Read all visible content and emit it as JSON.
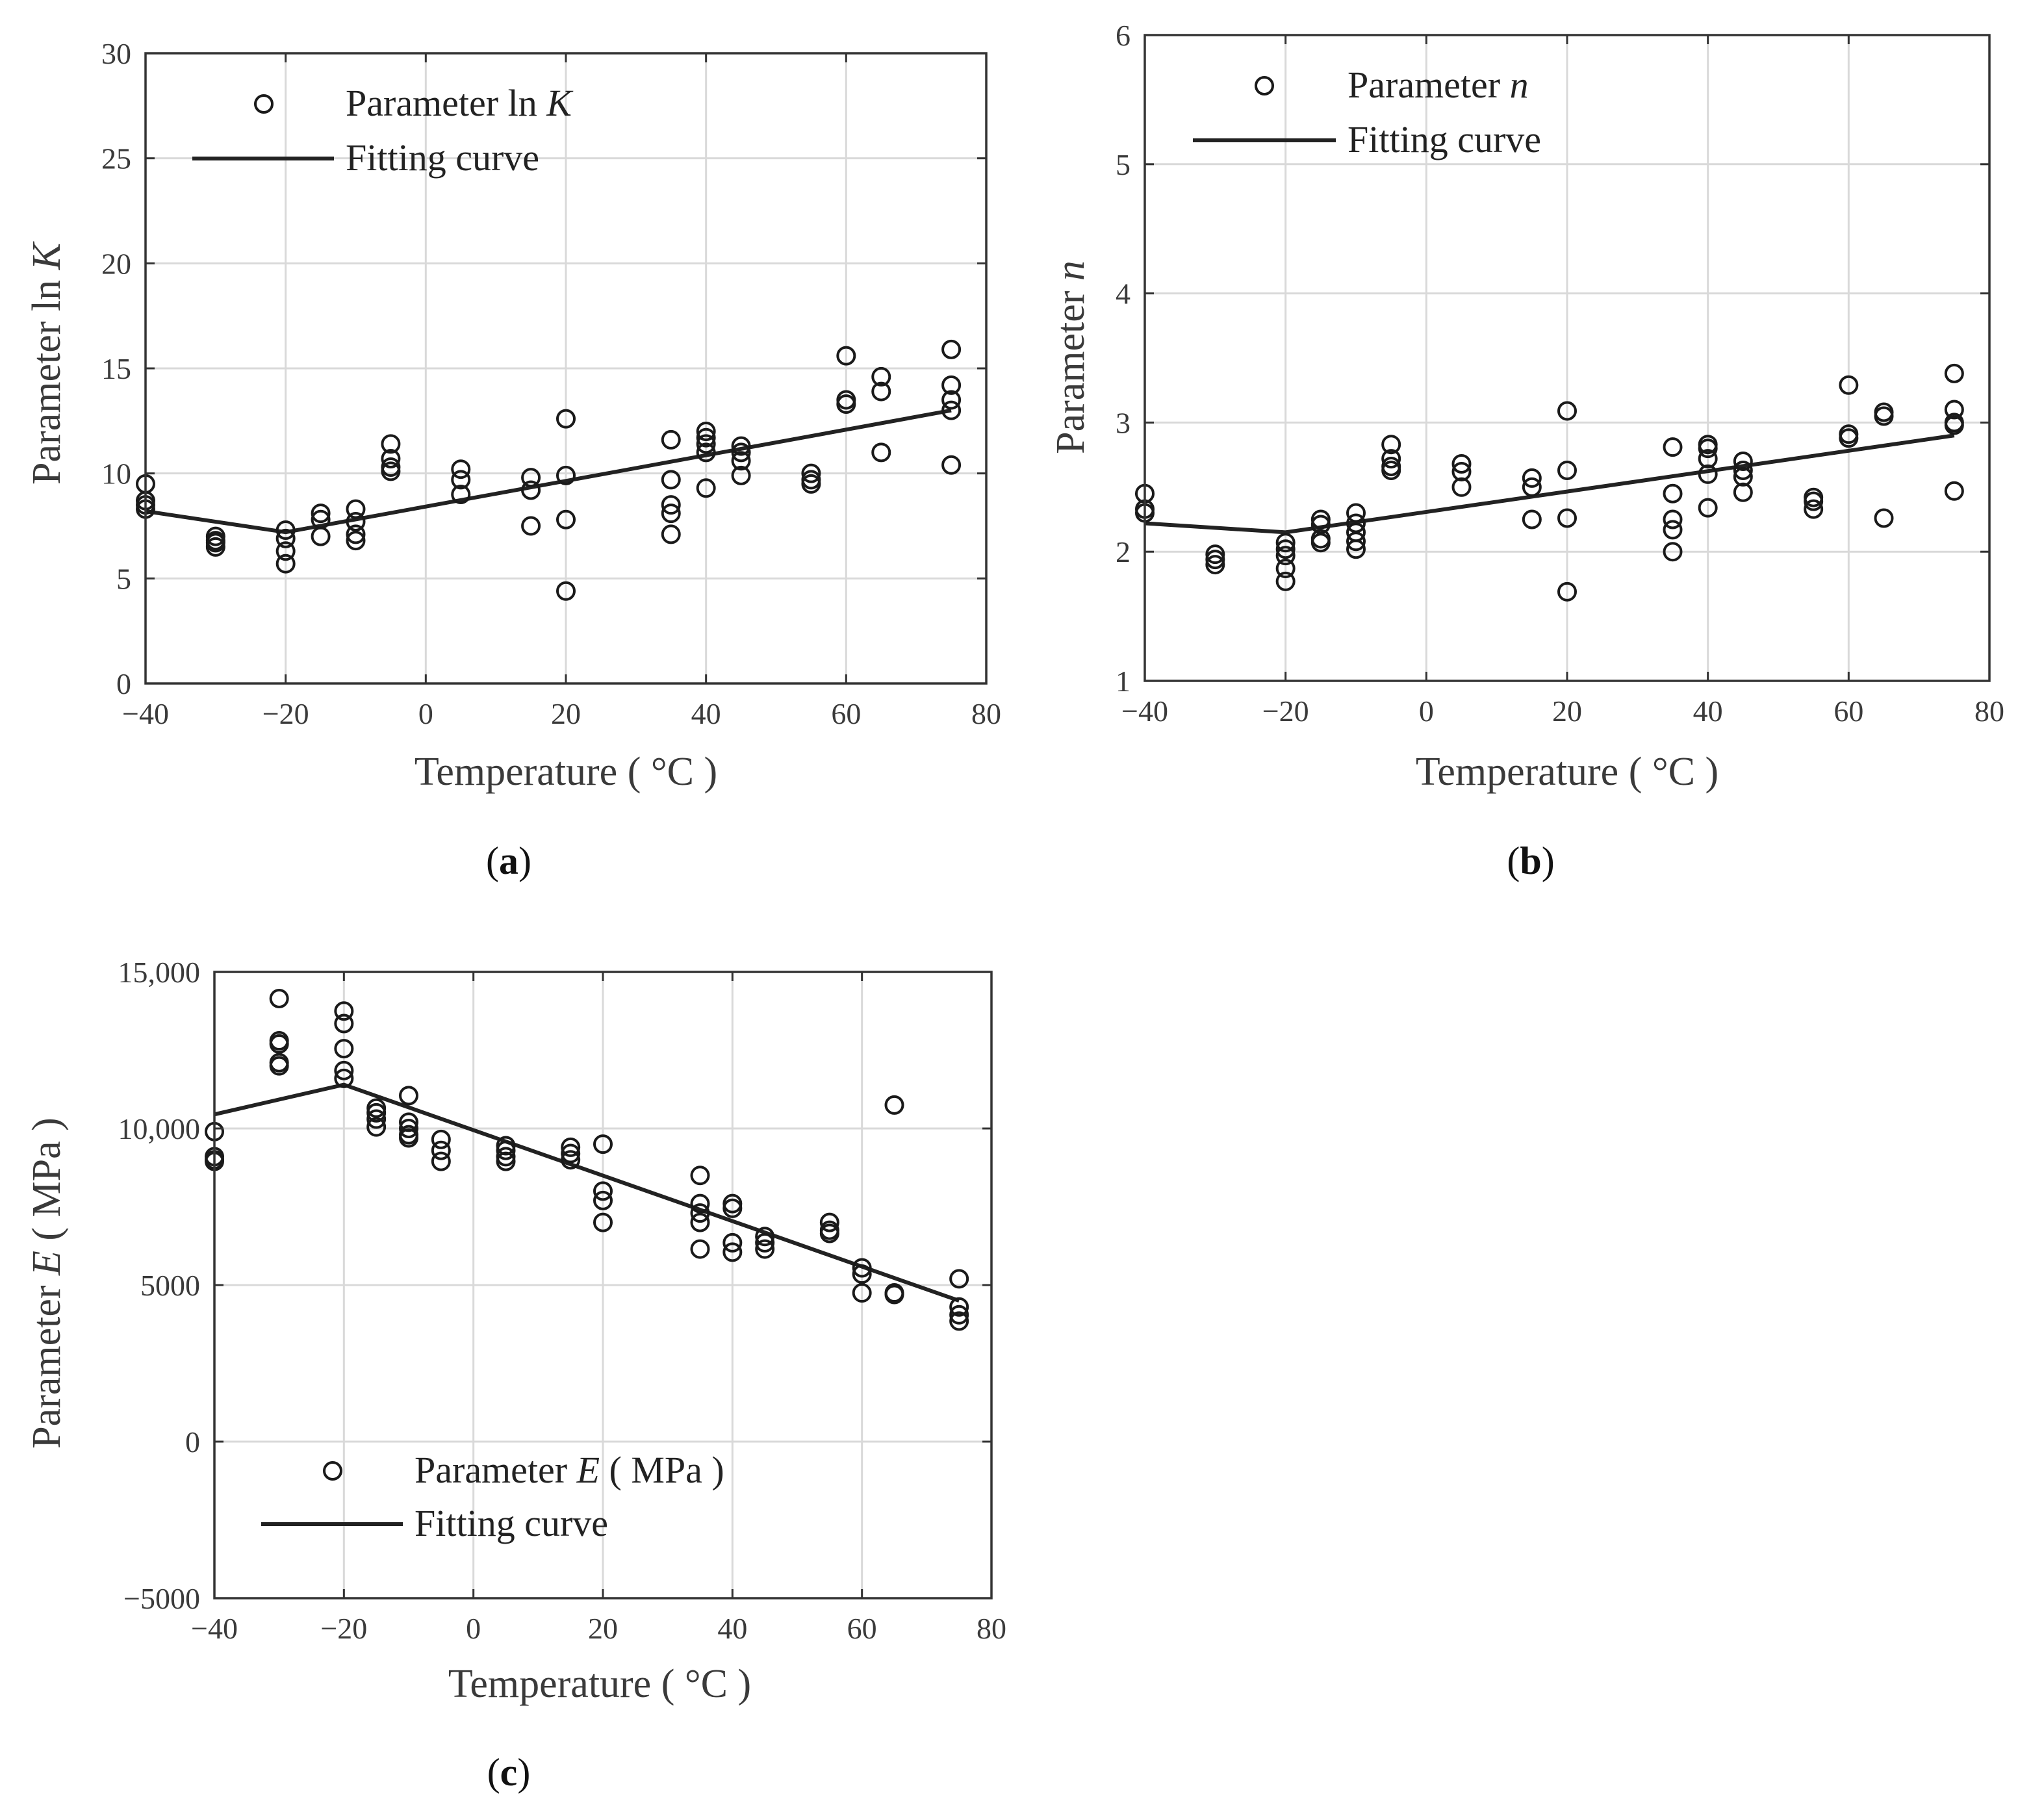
{
  "colors": {
    "marker": "#1a1a1a",
    "line": "#222222",
    "grid": "#d9d9d9",
    "axis": "#333333",
    "background": "#ffffff"
  },
  "chart_data": [
    {
      "id": "a",
      "panel_label": "a",
      "type": "scatter",
      "title": "",
      "xlabel": "Temperature ( °C )",
      "ylabel_prefix": "Parameter ln ",
      "ylabel_italic": "K",
      "xlim": [
        -40,
        80
      ],
      "ylim": [
        0,
        30
      ],
      "xticks": [
        -40,
        -20,
        0,
        20,
        40,
        60,
        80
      ],
      "yticks": [
        0,
        5,
        10,
        15,
        20,
        25,
        30
      ],
      "x_tick_labels": [
        "−40",
        "−20",
        "0",
        "20",
        "40",
        "60",
        "80"
      ],
      "y_tick_labels": [
        "0",
        "5",
        "10",
        "15",
        "20",
        "25",
        "30"
      ],
      "grid": true,
      "legend_position": "top-left",
      "series": [
        {
          "name": "Parameter ln K",
          "legend_prefix": "Parameter ln ",
          "legend_italic": "K",
          "legend_suffix": "",
          "kind": "scatter",
          "points": [
            [
              -40,
              9.5
            ],
            [
              -40,
              8.7
            ],
            [
              -40,
              8.3
            ],
            [
              -40,
              8.5
            ],
            [
              -30,
              7.0
            ],
            [
              -30,
              6.7
            ],
            [
              -30,
              6.5
            ],
            [
              -30,
              6.8
            ],
            [
              -20,
              7.3
            ],
            [
              -20,
              6.9
            ],
            [
              -20,
              6.3
            ],
            [
              -20,
              5.7
            ],
            [
              -15,
              8.1
            ],
            [
              -15,
              7.8
            ],
            [
              -15,
              7.0
            ],
            [
              -10,
              8.3
            ],
            [
              -10,
              7.7
            ],
            [
              -10,
              7.1
            ],
            [
              -10,
              6.8
            ],
            [
              -5,
              11.4
            ],
            [
              -5,
              10.7
            ],
            [
              -5,
              10.3
            ],
            [
              -5,
              10.1
            ],
            [
              5,
              10.2
            ],
            [
              5,
              9.7
            ],
            [
              5,
              9.0
            ],
            [
              15,
              9.8
            ],
            [
              15,
              9.2
            ],
            [
              15,
              7.5
            ],
            [
              20,
              12.6
            ],
            [
              20,
              9.9
            ],
            [
              20,
              7.8
            ],
            [
              20,
              4.4
            ],
            [
              35,
              11.6
            ],
            [
              35,
              9.7
            ],
            [
              35,
              8.5
            ],
            [
              35,
              8.1
            ],
            [
              35,
              7.1
            ],
            [
              40,
              12.0
            ],
            [
              40,
              11.7
            ],
            [
              40,
              11.4
            ],
            [
              40,
              11.0
            ],
            [
              40,
              9.3
            ],
            [
              45,
              11.3
            ],
            [
              45,
              11.0
            ],
            [
              45,
              10.6
            ],
            [
              45,
              9.9
            ],
            [
              55,
              10.0
            ],
            [
              55,
              9.7
            ],
            [
              55,
              9.5
            ],
            [
              60,
              15.6
            ],
            [
              60,
              13.5
            ],
            [
              60,
              13.3
            ],
            [
              65,
              14.6
            ],
            [
              65,
              13.9
            ],
            [
              65,
              11.0
            ],
            [
              75,
              15.9
            ],
            [
              75,
              14.2
            ],
            [
              75,
              13.5
            ],
            [
              75,
              13.0
            ],
            [
              75,
              10.4
            ]
          ]
        },
        {
          "name": "Fitting curve",
          "kind": "line",
          "x": [
            -40,
            -20,
            75
          ],
          "y": [
            8.2,
            7.2,
            13.0
          ]
        }
      ]
    },
    {
      "id": "b",
      "panel_label": "b",
      "type": "scatter",
      "title": "",
      "xlabel": "Temperature ( °C )",
      "ylabel_prefix": "Parameter ",
      "ylabel_italic": "n",
      "xlim": [
        -40,
        80
      ],
      "ylim": [
        1,
        6
      ],
      "xticks": [
        -40,
        -20,
        0,
        20,
        40,
        60,
        80
      ],
      "yticks": [
        1,
        2,
        3,
        4,
        5,
        6
      ],
      "x_tick_labels": [
        "−40",
        "−20",
        "0",
        "20",
        "40",
        "60",
        "80"
      ],
      "y_tick_labels": [
        "1",
        "2",
        "3",
        "4",
        "5",
        "6"
      ],
      "grid": true,
      "legend_position": "top-left",
      "series": [
        {
          "name": "Parameter n",
          "legend_prefix": "Parameter ",
          "legend_italic": "n",
          "legend_suffix": "",
          "kind": "scatter",
          "points": [
            [
              -40,
              2.45
            ],
            [
              -40,
              2.33
            ],
            [
              -40,
              2.3
            ],
            [
              -30,
              1.98
            ],
            [
              -30,
              1.94
            ],
            [
              -30,
              1.9
            ],
            [
              -20,
              2.07
            ],
            [
              -20,
              2.02
            ],
            [
              -20,
              1.97
            ],
            [
              -20,
              1.87
            ],
            [
              -20,
              1.77
            ],
            [
              -15,
              2.25
            ],
            [
              -15,
              2.21
            ],
            [
              -15,
              2.1
            ],
            [
              -15,
              2.07
            ],
            [
              -10,
              2.3
            ],
            [
              -10,
              2.22
            ],
            [
              -10,
              2.15
            ],
            [
              -10,
              2.08
            ],
            [
              -10,
              2.02
            ],
            [
              -5,
              2.83
            ],
            [
              -5,
              2.72
            ],
            [
              -5,
              2.66
            ],
            [
              -5,
              2.63
            ],
            [
              5,
              2.68
            ],
            [
              5,
              2.62
            ],
            [
              5,
              2.5
            ],
            [
              15,
              2.57
            ],
            [
              15,
              2.5
            ],
            [
              15,
              2.25
            ],
            [
              20,
              3.09
            ],
            [
              20,
              2.63
            ],
            [
              20,
              2.26
            ],
            [
              20,
              1.69
            ],
            [
              35,
              2.81
            ],
            [
              35,
              2.45
            ],
            [
              35,
              2.25
            ],
            [
              35,
              2.17
            ],
            [
              35,
              2.0
            ],
            [
              40,
              2.83
            ],
            [
              40,
              2.8
            ],
            [
              40,
              2.72
            ],
            [
              40,
              2.6
            ],
            [
              40,
              2.34
            ],
            [
              45,
              2.7
            ],
            [
              45,
              2.63
            ],
            [
              45,
              2.58
            ],
            [
              45,
              2.46
            ],
            [
              55,
              2.42
            ],
            [
              55,
              2.39
            ],
            [
              55,
              2.33
            ],
            [
              60,
              3.29
            ],
            [
              60,
              2.91
            ],
            [
              60,
              2.88
            ],
            [
              65,
              3.08
            ],
            [
              65,
              3.05
            ],
            [
              65,
              2.26
            ],
            [
              75,
              3.38
            ],
            [
              75,
              3.1
            ],
            [
              75,
              3.0
            ],
            [
              75,
              2.98
            ],
            [
              75,
              2.47
            ]
          ]
        },
        {
          "name": "Fitting curve",
          "kind": "line",
          "x": [
            -40,
            -20,
            75
          ],
          "y": [
            2.22,
            2.15,
            2.9
          ]
        }
      ]
    },
    {
      "id": "c",
      "panel_label": "c",
      "type": "scatter",
      "title": "",
      "xlabel": "Temperature ( °C )",
      "ylabel_prefix": "Parameter ",
      "ylabel_italic": "E",
      "ylabel_suffix": " ( MPa )",
      "xlim": [
        -40,
        80
      ],
      "ylim": [
        -5000,
        15000
      ],
      "xticks": [
        -40,
        -20,
        0,
        20,
        40,
        60,
        80
      ],
      "yticks": [
        -5000,
        0,
        5000,
        10000,
        15000
      ],
      "x_tick_labels": [
        "−40",
        "−20",
        "0",
        "20",
        "40",
        "60",
        "80"
      ],
      "y_tick_labels": [
        "−5000",
        "0",
        "5000",
        "10,000",
        "15,000"
      ],
      "grid": true,
      "legend_position": "bottom-left",
      "series": [
        {
          "name": "Parameter E ( MPa )",
          "legend_prefix": "Parameter ",
          "legend_italic": "E",
          "legend_suffix": " ( MPa )",
          "kind": "scatter",
          "points": [
            [
              -40,
              9900
            ],
            [
              -40,
              9100
            ],
            [
              -40,
              9000
            ],
            [
              -40,
              8950
            ],
            [
              -30,
              14150
            ],
            [
              -30,
              12800
            ],
            [
              -30,
              12700
            ],
            [
              -30,
              12100
            ],
            [
              -30,
              12000
            ],
            [
              -20,
              13750
            ],
            [
              -20,
              13350
            ],
            [
              -20,
              12550
            ],
            [
              -20,
              11850
            ],
            [
              -20,
              11600
            ],
            [
              -15,
              10650
            ],
            [
              -15,
              10500
            ],
            [
              -15,
              10300
            ],
            [
              -15,
              10050
            ],
            [
              -10,
              11050
            ],
            [
              -10,
              10200
            ],
            [
              -10,
              10000
            ],
            [
              -10,
              9800
            ],
            [
              -10,
              9700
            ],
            [
              -5,
              9650
            ],
            [
              -5,
              9300
            ],
            [
              -5,
              8950
            ],
            [
              5,
              9450
            ],
            [
              5,
              9300
            ],
            [
              5,
              9100
            ],
            [
              5,
              8950
            ],
            [
              15,
              9400
            ],
            [
              15,
              9200
            ],
            [
              15,
              9000
            ],
            [
              20,
              9500
            ],
            [
              20,
              8000
            ],
            [
              20,
              7700
            ],
            [
              20,
              7000
            ],
            [
              35,
              8500
            ],
            [
              35,
              7600
            ],
            [
              35,
              7300
            ],
            [
              35,
              7000
            ],
            [
              35,
              6150
            ],
            [
              40,
              7600
            ],
            [
              40,
              7450
            ],
            [
              40,
              6350
            ],
            [
              40,
              6050
            ],
            [
              45,
              6550
            ],
            [
              45,
              6350
            ],
            [
              45,
              6150
            ],
            [
              55,
              7000
            ],
            [
              55,
              6750
            ],
            [
              55,
              6650
            ],
            [
              60,
              5550
            ],
            [
              60,
              5350
            ],
            [
              60,
              4750
            ],
            [
              65,
              10750
            ],
            [
              65,
              4750
            ],
            [
              65,
              4700
            ],
            [
              75,
              5200
            ],
            [
              75,
              4300
            ],
            [
              75,
              4050
            ],
            [
              75,
              3850
            ]
          ]
        },
        {
          "name": "Fitting curve",
          "kind": "line",
          "x": [
            -40,
            -20,
            75
          ],
          "y": [
            10450,
            11400,
            4500
          ]
        }
      ]
    }
  ]
}
